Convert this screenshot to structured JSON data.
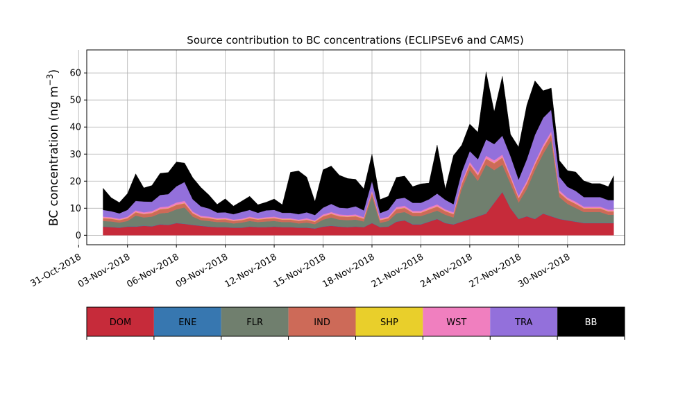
{
  "chart_data": {
    "type": "area",
    "stacked": true,
    "title": "Source contribution to BC concentrations (ECLIPSEv6 and CAMS)",
    "ylabel_main": "BC concentration (ng m",
    "ylabel_sup": "−3",
    "ylabel_close": ")",
    "ylim": [
      -3.5,
      68.5
    ],
    "yticks": [
      0,
      10,
      20,
      30,
      40,
      50,
      60
    ],
    "xlim": [
      "2018-10-31T12:00",
      "2018-12-03T12:00"
    ],
    "xticks": [
      {
        "date": "2018-10-31T00:00",
        "label": "31-Oct-2018"
      },
      {
        "date": "2018-11-03T00:00",
        "label": "03-Nov-2018"
      },
      {
        "date": "2018-11-06T00:00",
        "label": "06-Nov-2018"
      },
      {
        "date": "2018-11-09T00:00",
        "label": "09-Nov-2018"
      },
      {
        "date": "2018-11-12T00:00",
        "label": "12-Nov-2018"
      },
      {
        "date": "2018-11-15T00:00",
        "label": "15-Nov-2018"
      },
      {
        "date": "2018-11-18T00:00",
        "label": "18-Nov-2018"
      },
      {
        "date": "2018-11-21T00:00",
        "label": "21-Nov-2018"
      },
      {
        "date": "2018-11-24T00:00",
        "label": "24-Nov-2018"
      },
      {
        "date": "2018-11-27T00:00",
        "label": "27-Nov-2018"
      },
      {
        "date": "2018-11-30T00:00",
        "label": "30-Nov-2018"
      }
    ],
    "grid": true,
    "legend_placement": "colorbar-below",
    "x": [
      "2018-11-01T12:00",
      "2018-11-02T00:00",
      "2018-11-02T12:00",
      "2018-11-03T00:00",
      "2018-11-03T12:00",
      "2018-11-04T00:00",
      "2018-11-04T12:00",
      "2018-11-05T00:00",
      "2018-11-05T12:00",
      "2018-11-06T00:00",
      "2018-11-06T12:00",
      "2018-11-07T00:00",
      "2018-11-07T12:00",
      "2018-11-08T00:00",
      "2018-11-08T12:00",
      "2018-11-09T00:00",
      "2018-11-09T12:00",
      "2018-11-10T00:00",
      "2018-11-10T12:00",
      "2018-11-11T00:00",
      "2018-11-11T12:00",
      "2018-11-12T00:00",
      "2018-11-12T12:00",
      "2018-11-13T00:00",
      "2018-11-13T12:00",
      "2018-11-14T00:00",
      "2018-11-14T12:00",
      "2018-11-15T00:00",
      "2018-11-15T12:00",
      "2018-11-16T00:00",
      "2018-11-16T12:00",
      "2018-11-17T00:00",
      "2018-11-17T12:00",
      "2018-11-18T00:00",
      "2018-11-18T12:00",
      "2018-11-19T00:00",
      "2018-11-19T12:00",
      "2018-11-20T00:00",
      "2018-11-20T12:00",
      "2018-11-21T00:00",
      "2018-11-21T12:00",
      "2018-11-22T00:00",
      "2018-11-22T12:00",
      "2018-11-23T00:00",
      "2018-11-23T12:00",
      "2018-11-24T00:00",
      "2018-11-24T12:00",
      "2018-11-25T00:00",
      "2018-11-25T12:00",
      "2018-11-26T00:00",
      "2018-11-26T12:00",
      "2018-11-27T00:00",
      "2018-11-27T12:00",
      "2018-11-28T00:00",
      "2018-11-28T12:00",
      "2018-11-29T00:00",
      "2018-11-29T12:00",
      "2018-11-30T00:00",
      "2018-11-30T12:00",
      "2018-12-01T00:00",
      "2018-12-01T12:00",
      "2018-12-02T00:00",
      "2018-12-02T12:00",
      "2018-12-02T20:00"
    ],
    "series": [
      {
        "name": "DOM",
        "color": "#c62b3a",
        "text_color": "#000000",
        "values": [
          3.2,
          3.0,
          2.8,
          3.2,
          3.2,
          3.5,
          3.3,
          4.0,
          3.8,
          4.5,
          4.2,
          3.8,
          3.5,
          3.2,
          3.0,
          3.0,
          2.8,
          2.8,
          3.2,
          3.0,
          3.0,
          3.2,
          3.0,
          3.0,
          2.8,
          2.8,
          2.5,
          3.2,
          3.5,
          3.2,
          3.0,
          3.2,
          3.0,
          4.5,
          3.0,
          3.2,
          5.0,
          5.5,
          4.0,
          4.0,
          5.0,
          6.0,
          4.5,
          4.0,
          5.0,
          6.0,
          7.0,
          8.0,
          12.0,
          16.0,
          10.0,
          6.0,
          7.0,
          6.0,
          8.0,
          7.0,
          6.0,
          5.5,
          5.0,
          4.5,
          4.5,
          4.5,
          4.5,
          4.5
        ]
      },
      {
        "name": "ENE",
        "color": "#3777b0",
        "text_color": "#000000",
        "values": [
          0.1,
          0.1,
          0.1,
          0.1,
          0.1,
          0.1,
          0.1,
          0.1,
          0.1,
          0.1,
          0.1,
          0.1,
          0.1,
          0.1,
          0.1,
          0.1,
          0.1,
          0.1,
          0.1,
          0.1,
          0.1,
          0.1,
          0.1,
          0.1,
          0.1,
          0.1,
          0.1,
          0.1,
          0.1,
          0.1,
          0.1,
          0.1,
          0.1,
          0.1,
          0.1,
          0.1,
          0.1,
          0.1,
          0.1,
          0.1,
          0.1,
          0.1,
          0.1,
          0.1,
          0.1,
          0.1,
          0.1,
          0.1,
          0.1,
          0.1,
          0.1,
          0.1,
          0.1,
          0.1,
          0.1,
          0.1,
          0.1,
          0.1,
          0.1,
          0.1,
          0.1,
          0.1,
          0.1,
          0.1
        ]
      },
      {
        "name": "FLR",
        "color": "#707f6e",
        "text_color": "#000000",
        "values": [
          2.0,
          2.0,
          1.8,
          2.0,
          4.0,
          3.0,
          3.5,
          4.0,
          4.5,
          5.0,
          6.0,
          3.0,
          2.0,
          2.0,
          1.8,
          1.8,
          1.5,
          1.8,
          2.0,
          1.8,
          2.0,
          2.0,
          1.8,
          1.8,
          1.5,
          1.8,
          1.5,
          2.5,
          3.0,
          2.5,
          2.5,
          2.5,
          2.0,
          10.0,
          1.5,
          2.0,
          3.0,
          3.0,
          3.0,
          3.0,
          3.0,
          3.0,
          3.0,
          2.5,
          12.0,
          18.0,
          13.0,
          18.0,
          12.0,
          10.0,
          9.0,
          6.0,
          10.0,
          18.0,
          22.0,
          28.0,
          8.0,
          6.0,
          5.0,
          4.0,
          4.0,
          4.0,
          3.0,
          3.0
        ]
      },
      {
        "name": "IND",
        "color": "#cd6a58",
        "text_color": "#000000",
        "values": [
          1.0,
          1.0,
          0.9,
          1.0,
          1.2,
          1.2,
          1.3,
          1.5,
          1.5,
          1.6,
          1.5,
          1.2,
          1.0,
          1.0,
          0.9,
          1.0,
          0.9,
          0.9,
          1.0,
          0.9,
          1.0,
          1.0,
          0.9,
          0.9,
          0.9,
          1.0,
          0.9,
          1.2,
          1.3,
          1.2,
          1.2,
          1.2,
          1.0,
          1.2,
          1.0,
          1.0,
          1.5,
          1.5,
          1.2,
          1.2,
          1.4,
          1.5,
          1.3,
          1.2,
          1.8,
          2.0,
          2.0,
          2.2,
          2.5,
          2.6,
          2.2,
          1.6,
          2.0,
          2.0,
          2.2,
          2.2,
          1.6,
          1.5,
          1.5,
          1.3,
          1.3,
          1.3,
          1.2,
          1.2
        ]
      },
      {
        "name": "SHP",
        "color": "#e9cf2b",
        "text_color": "#000000",
        "values": [
          0.1,
          0.1,
          0.1,
          0.1,
          0.1,
          0.1,
          0.1,
          0.1,
          0.1,
          0.1,
          0.1,
          0.1,
          0.1,
          0.1,
          0.1,
          0.1,
          0.1,
          0.1,
          0.1,
          0.1,
          0.1,
          0.1,
          0.1,
          0.1,
          0.1,
          0.1,
          0.1,
          0.1,
          0.1,
          0.1,
          0.1,
          0.1,
          0.1,
          0.1,
          0.1,
          0.1,
          0.1,
          0.1,
          0.1,
          0.1,
          0.1,
          0.1,
          0.1,
          0.1,
          0.1,
          0.1,
          0.1,
          0.1,
          0.1,
          0.1,
          0.1,
          0.1,
          0.1,
          0.1,
          0.1,
          0.1,
          0.1,
          0.1,
          0.1,
          0.1,
          0.1,
          0.1,
          0.1,
          0.1
        ]
      },
      {
        "name": "WST",
        "color": "#f07fbf",
        "text_color": "#000000",
        "values": [
          0.5,
          0.5,
          0.4,
          0.5,
          0.6,
          0.6,
          0.6,
          0.7,
          0.7,
          0.8,
          0.8,
          0.6,
          0.5,
          0.5,
          0.5,
          0.5,
          0.4,
          0.4,
          0.5,
          0.4,
          0.5,
          0.5,
          0.4,
          0.4,
          0.4,
          0.5,
          0.4,
          0.6,
          0.6,
          0.6,
          0.6,
          0.6,
          0.5,
          0.6,
          0.5,
          0.5,
          0.7,
          0.7,
          0.6,
          0.6,
          0.7,
          0.7,
          0.6,
          0.6,
          0.8,
          0.9,
          0.9,
          1.0,
          1.0,
          1.0,
          0.9,
          0.8,
          0.9,
          0.9,
          1.0,
          1.0,
          0.8,
          0.7,
          0.7,
          0.6,
          0.6,
          0.6,
          0.6,
          0.6
        ]
      },
      {
        "name": "TRA",
        "color": "#9370db",
        "text_color": "#000000",
        "values": [
          2.5,
          2.2,
          2.0,
          2.5,
          3.5,
          4.0,
          3.5,
          4.5,
          4.5,
          6.0,
          7.0,
          4.5,
          3.5,
          3.0,
          2.0,
          2.0,
          2.0,
          2.5,
          2.5,
          2.0,
          2.5,
          2.5,
          2.0,
          2.0,
          2.0,
          2.2,
          2.0,
          2.5,
          3.0,
          2.5,
          2.5,
          3.0,
          2.5,
          3.5,
          2.0,
          2.5,
          3.0,
          3.0,
          3.0,
          3.0,
          3.0,
          4.0,
          3.5,
          3.0,
          3.5,
          4.0,
          5.0,
          6.0,
          6.0,
          7.0,
          7.0,
          6.0,
          8.0,
          10.0,
          10.0,
          8.0,
          5.0,
          4.0,
          4.0,
          3.5,
          3.5,
          3.5,
          3.5,
          3.5
        ]
      },
      {
        "name": "BB",
        "color": "#000000",
        "text_color": "#ffffff",
        "values": [
          8.0,
          5.0,
          4.0,
          6.0,
          10.0,
          5.0,
          6.0,
          8.0,
          8.0,
          9.0,
          7.0,
          8.0,
          7.0,
          5.0,
          3.0,
          5.0,
          3.0,
          4.0,
          5.0,
          3.0,
          3.0,
          4.0,
          3.0,
          15.0,
          16.0,
          13.0,
          5.0,
          14.0,
          14.0,
          12.0,
          11.0,
          10.0,
          8.0,
          10.0,
          5.0,
          5.0,
          8.0,
          8.0,
          6.0,
          7.0,
          6.0,
          18.0,
          4.0,
          18.0,
          10.0,
          10.0,
          10.0,
          25.0,
          12.0,
          22.0,
          8.0,
          12.0,
          20.0,
          20.0,
          10.0,
          8.0,
          6.0,
          6.0,
          7.0,
          6.0,
          5.0,
          5.0,
          5.0,
          9.0
        ]
      }
    ]
  }
}
